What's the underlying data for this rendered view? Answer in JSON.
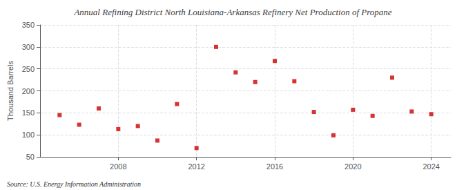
{
  "chart_data": {
    "type": "scatter",
    "title": "Annual Refining District North Louisiana-Arkansas Refinery Net Production of Propane",
    "ylabel": "Thousand Barrels",
    "source": "Source: U.S. Energy Information Administration",
    "x": [
      2005,
      2006,
      2007,
      2008,
      2009,
      2010,
      2011,
      2012,
      2013,
      2014,
      2015,
      2016,
      2017,
      2018,
      2019,
      2020,
      2021,
      2022,
      2023,
      2024
    ],
    "values": [
      145,
      123,
      160,
      113,
      120,
      87,
      170,
      70,
      300,
      242,
      220,
      268,
      222,
      152,
      99,
      157,
      143,
      230,
      153,
      147
    ],
    "color": "#cc0000",
    "marker": "square",
    "xlim": [
      2004,
      2025
    ],
    "xticks": [
      2008,
      2012,
      2016,
      2020,
      2024
    ],
    "ylim": [
      50,
      350
    ],
    "yticks": [
      50,
      100,
      150,
      200,
      250,
      300,
      350
    ],
    "grid": true
  }
}
